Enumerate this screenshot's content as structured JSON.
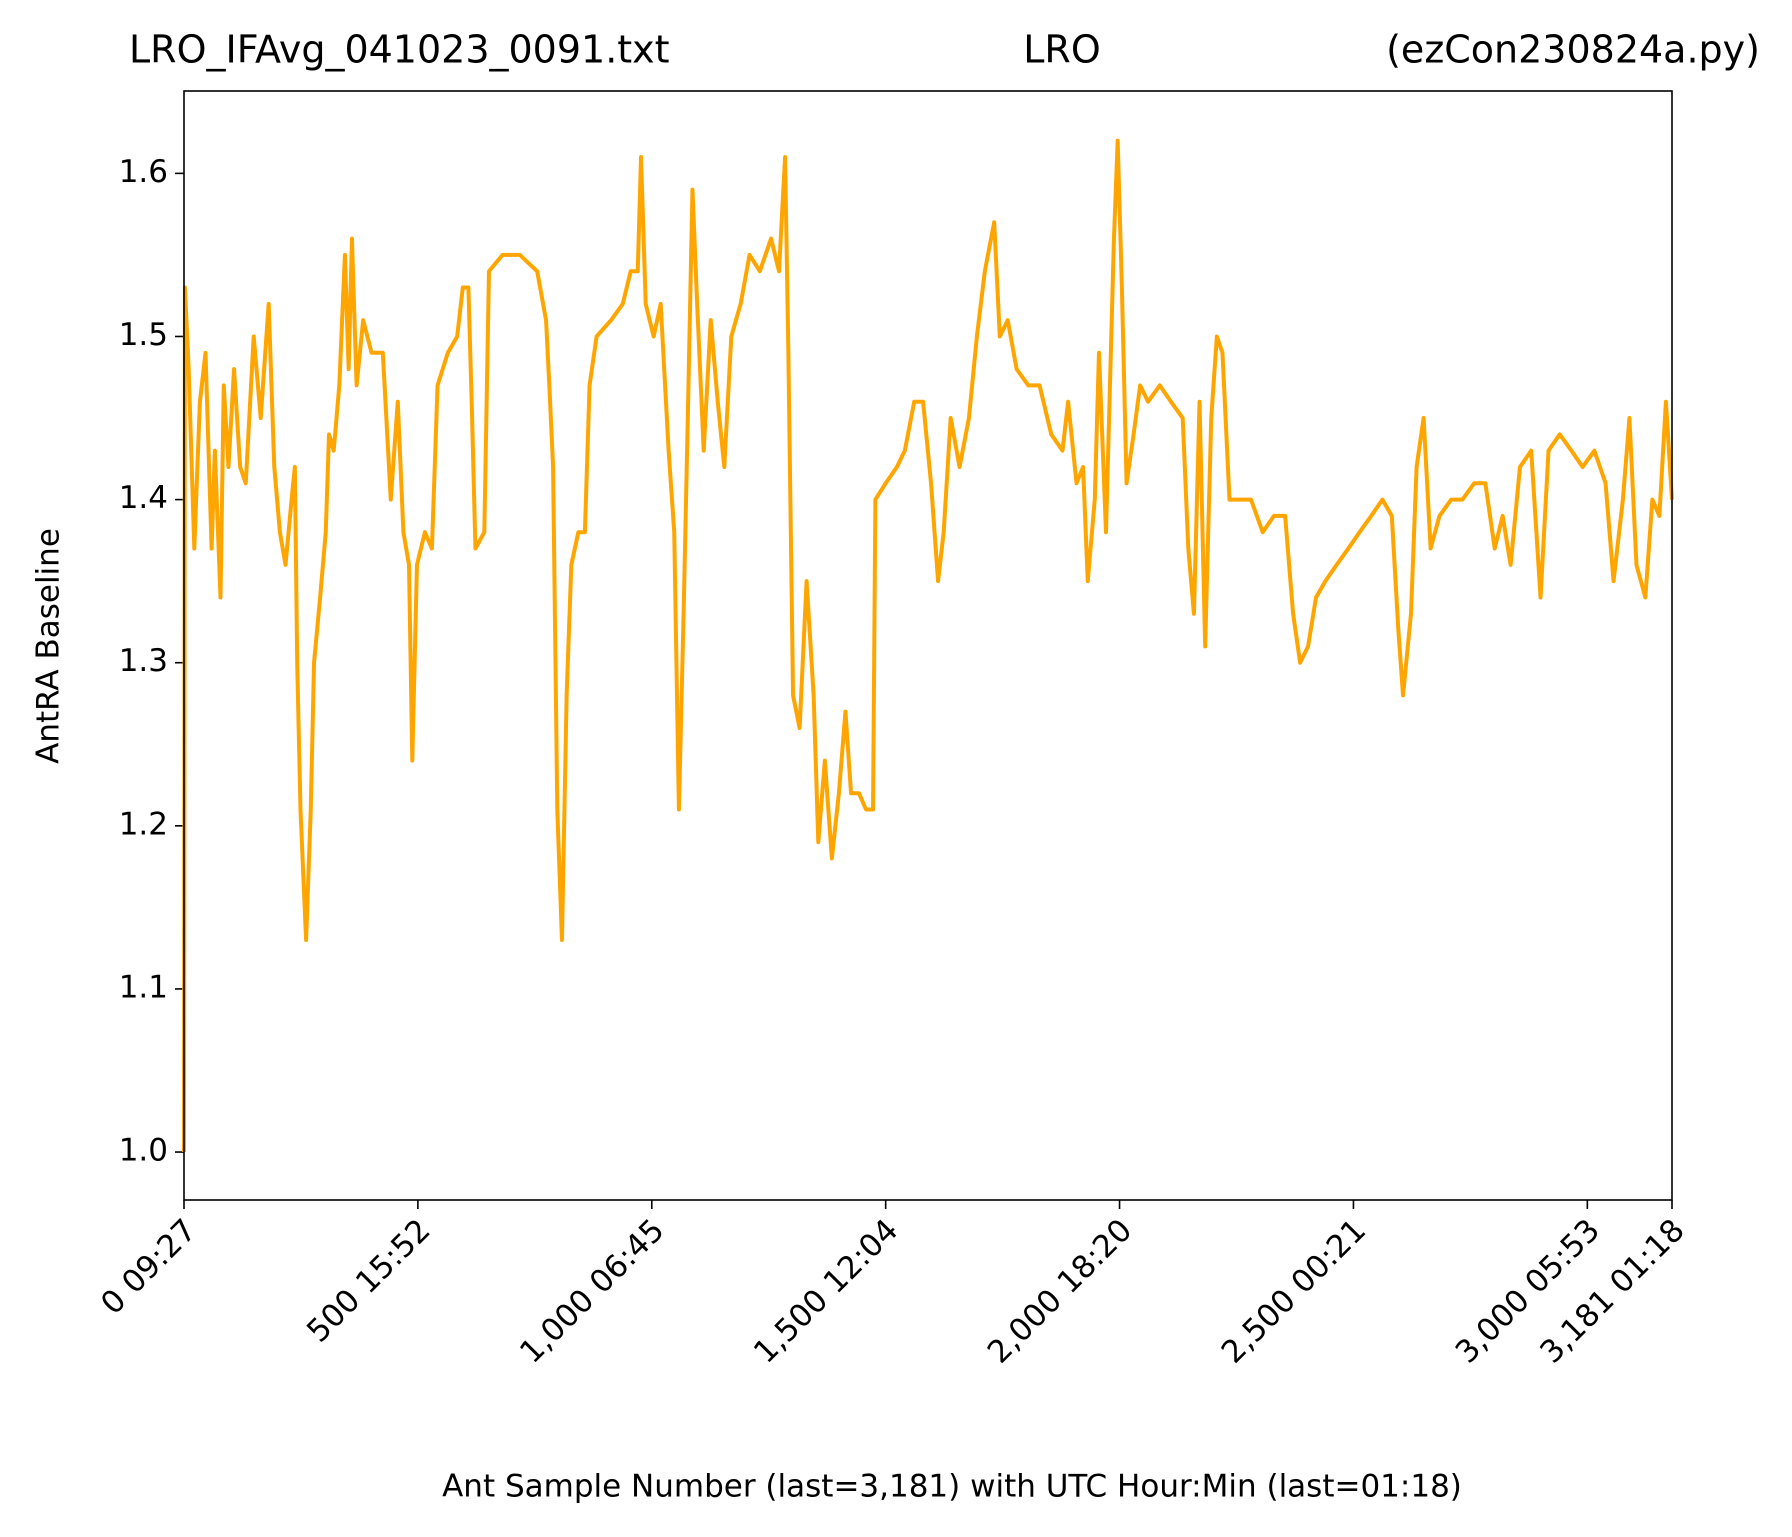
{
  "chart_data": {
    "type": "line",
    "title": [
      "LRO_IFAvg_041023_0091.txt",
      "LRO",
      "(ezCon230824a.py)"
    ],
    "xlabel": "Ant Sample Number (last=3,181) with UTC Hour:Min (last=01:18)",
    "ylabel": "AntRA Baseline",
    "color": "#ffa500",
    "xlim": [
      0,
      3181
    ],
    "ylim": [
      0.9706,
      1.6505
    ],
    "xticks": [
      {
        "value": 0,
        "label": "0  09:27"
      },
      {
        "value": 500,
        "label": "500  15:52"
      },
      {
        "value": 1000,
        "label": "1,000  06:45"
      },
      {
        "value": 1500,
        "label": "1,500  12:04"
      },
      {
        "value": 2000,
        "label": "2,000  18:20"
      },
      {
        "value": 2500,
        "label": "2,500  00:21"
      },
      {
        "value": 3000,
        "label": "3,000  05:53"
      },
      {
        "value": 3181,
        "label": "3,181  01:18"
      }
    ],
    "yticks": [
      {
        "value": 1,
        "label": "1.0"
      },
      1.1,
      1.2,
      1.3,
      1.4,
      1.5,
      1.6
    ],
    "x": [
      0,
      2,
      10,
      22,
      34,
      46,
      59,
      66,
      78,
      85,
      95,
      107,
      120,
      132,
      149,
      164,
      181,
      193,
      205,
      217,
      230,
      237,
      242,
      249,
      261,
      271,
      278,
      291,
      303,
      310,
      320,
      332,
      344,
      352,
      359,
      369,
      383,
      401,
      425,
      442,
      457,
      469,
      481,
      488,
      498,
      515,
      530,
      542,
      564,
      584,
      596,
      608,
      615,
      623,
      642,
      652,
      681,
      718,
      755,
      774,
      781,
      789,
      798,
      808,
      818,
      828,
      843,
      857,
      867,
      882,
      913,
      938,
      955,
      970,
      977,
      987,
      1004,
      1019,
      1036,
      1048,
      1058,
      1068,
      1077,
      1087,
      1097,
      1111,
      1126,
      1141,
      1155,
      1170,
      1190,
      1209,
      1231,
      1255,
      1272,
      1285,
      1292,
      1302,
      1316,
      1331,
      1346,
      1356,
      1370,
      1385,
      1400,
      1414,
      1426,
      1443,
      1458,
      1473,
      1478,
      1500,
      1524,
      1541,
      1561,
      1580,
      1597,
      1612,
      1624,
      1639,
      1658,
      1678,
      1695,
      1712,
      1732,
      1744,
      1761,
      1780,
      1805,
      1829,
      1854,
      1878,
      1890,
      1908,
      1922,
      1932,
      1947,
      1956,
      1971,
      1988,
      1996,
      2005,
      2015,
      2030,
      2044,
      2061,
      2086,
      2110,
      2135,
      2147,
      2159,
      2171,
      2183,
      2196,
      2208,
      2220,
      2235,
      2257,
      2281,
      2306,
      2330,
      2354,
      2371,
      2386,
      2403,
      2420,
      2440,
      2464,
      2489,
      2513,
      2538,
      2562,
      2582,
      2596,
      2606,
      2623,
      2635,
      2650,
      2665,
      2684,
      2709,
      2733,
      2758,
      2782,
      2802,
      2819,
      2836,
      2856,
      2880,
      2900,
      2917,
      2941,
      2966,
      2990,
      3015,
      3039,
      3056,
      3076,
      3090,
      3105,
      3124,
      3139,
      3154,
      3168,
      3181
    ],
    "values": [
      1.0,
      1.53,
      1.48,
      1.37,
      1.46,
      1.49,
      1.37,
      1.43,
      1.34,
      1.47,
      1.42,
      1.48,
      1.42,
      1.41,
      1.5,
      1.45,
      1.52,
      1.42,
      1.38,
      1.36,
      1.4,
      1.42,
      1.3,
      1.21,
      1.13,
      1.21,
      1.3,
      1.34,
      1.38,
      1.44,
      1.43,
      1.47,
      1.55,
      1.48,
      1.56,
      1.47,
      1.51,
      1.49,
      1.49,
      1.4,
      1.46,
      1.38,
      1.36,
      1.24,
      1.36,
      1.38,
      1.37,
      1.47,
      1.49,
      1.5,
      1.53,
      1.53,
      1.46,
      1.37,
      1.38,
      1.54,
      1.55,
      1.55,
      1.54,
      1.51,
      1.47,
      1.42,
      1.21,
      1.13,
      1.28,
      1.36,
      1.38,
      1.38,
      1.47,
      1.5,
      1.51,
      1.52,
      1.54,
      1.54,
      1.61,
      1.52,
      1.5,
      1.52,
      1.43,
      1.38,
      1.21,
      1.33,
      1.45,
      1.59,
      1.52,
      1.43,
      1.51,
      1.46,
      1.42,
      1.5,
      1.52,
      1.55,
      1.54,
      1.56,
      1.54,
      1.61,
      1.49,
      1.28,
      1.26,
      1.35,
      1.28,
      1.19,
      1.24,
      1.18,
      1.22,
      1.27,
      1.22,
      1.22,
      1.21,
      1.21,
      1.4,
      1.41,
      1.42,
      1.43,
      1.46,
      1.46,
      1.41,
      1.35,
      1.38,
      1.45,
      1.42,
      1.45,
      1.5,
      1.54,
      1.57,
      1.5,
      1.51,
      1.48,
      1.47,
      1.47,
      1.44,
      1.43,
      1.46,
      1.41,
      1.42,
      1.35,
      1.4,
      1.49,
      1.38,
      1.56,
      1.62,
      1.53,
      1.41,
      1.44,
      1.47,
      1.46,
      1.47,
      1.46,
      1.45,
      1.37,
      1.33,
      1.46,
      1.31,
      1.45,
      1.5,
      1.49,
      1.4,
      1.4,
      1.4,
      1.38,
      1.39,
      1.39,
      1.33,
      1.3,
      1.31,
      1.34,
      1.35,
      1.36,
      1.37,
      1.38,
      1.39,
      1.4,
      1.39,
      1.32,
      1.28,
      1.33,
      1.42,
      1.45,
      1.37,
      1.39,
      1.4,
      1.4,
      1.41,
      1.41,
      1.37,
      1.39,
      1.36,
      1.42,
      1.43,
      1.34,
      1.43,
      1.44,
      1.43,
      1.42,
      1.43,
      1.41,
      1.35,
      1.4,
      1.45,
      1.36,
      1.34,
      1.4,
      1.39,
      1.46,
      1.4
    ]
  }
}
